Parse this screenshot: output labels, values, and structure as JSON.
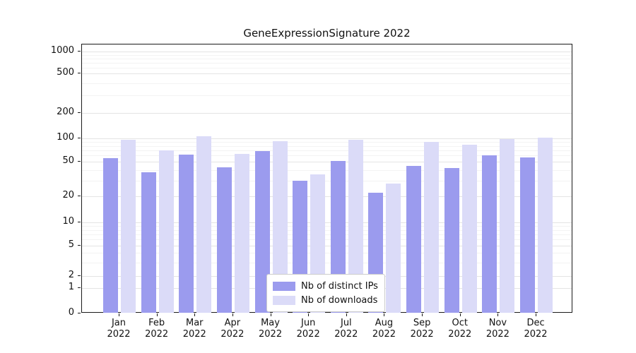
{
  "figure": {
    "title": "GeneExpressionSignature 2022"
  },
  "chart_data": {
    "type": "bar",
    "title": "GeneExpressionSignature 2022",
    "categories": [
      "Jan 2022",
      "Feb 2022",
      "Mar 2022",
      "Apr 2022",
      "May 2022",
      "Jun 2022",
      "Jul 2022",
      "Aug 2022",
      "Sep 2022",
      "Oct 2022",
      "Nov 2022",
      "Dec 2022"
    ],
    "x_tick_months": [
      "Jan",
      "Feb",
      "Mar",
      "Apr",
      "May",
      "Jun",
      "Jul",
      "Aug",
      "Sep",
      "Oct",
      "Nov",
      "Dec"
    ],
    "x_tick_year": "2022",
    "series": [
      {
        "name": "Nb of distinct IPs",
        "color": "#9b9bee",
        "values": [
          56,
          38,
          62,
          43,
          68,
          30,
          51,
          22,
          45,
          42,
          60,
          57
        ]
      },
      {
        "name": "Nb of downloads",
        "color": "#dbdbf8",
        "values": [
          95,
          70,
          105,
          63,
          92,
          36,
          95,
          28,
          90,
          82,
          97,
          102
        ]
      }
    ],
    "xlabel": "",
    "ylabel": "",
    "yscale": "symlog",
    "y_ticks": [
      0,
      1,
      2,
      5,
      10,
      20,
      50,
      100,
      200,
      500,
      1000
    ],
    "y_minor_ticks": [
      3,
      4,
      6,
      7,
      8,
      9,
      30,
      40,
      60,
      70,
      80,
      90,
      300,
      400,
      600,
      700,
      800,
      900
    ],
    "ylim": [
      0,
      1000
    ],
    "grid": true,
    "legend_position": "lower center"
  }
}
